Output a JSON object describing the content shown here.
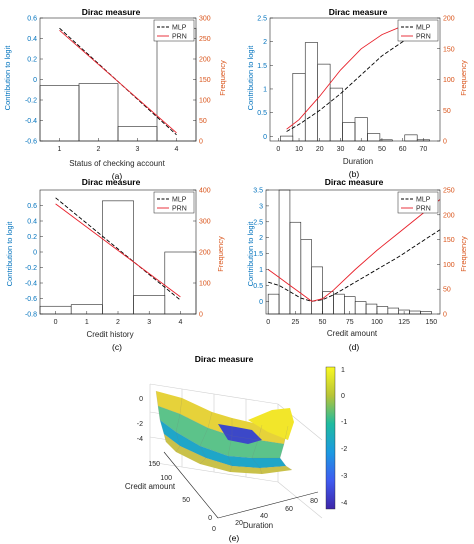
{
  "figure": {
    "colors": {
      "left_axis": "#0072BD",
      "right_axis": "#D95319",
      "mlp": "#000000",
      "prn": "#E8202A"
    },
    "panel_labels": [
      "(a)",
      "(b)",
      "(c)",
      "(d)",
      "(e)"
    ]
  },
  "chart_data": [
    {
      "type": "bar",
      "title": "Dirac measure",
      "xlabel": "Status of checking account",
      "ylabel": "Contribution to logit",
      "y2label": "Frequency",
      "xticks": [
        "1",
        "2",
        "3",
        "4"
      ],
      "xlim": [
        0.5,
        4.5
      ],
      "ylim": [
        -0.6,
        0.6
      ],
      "yticks": [
        "-0.6",
        "-0.4",
        "-0.2",
        "0",
        "0.2",
        "0.4",
        "0.6"
      ],
      "y2lim": [
        0,
        300
      ],
      "y2ticks": [
        "0",
        "50",
        "100",
        "150",
        "200",
        "250",
        "300"
      ],
      "bars": {
        "x": [
          1,
          2,
          3,
          4
        ],
        "frequency": [
          135,
          140,
          35,
          275
        ]
      },
      "legend": [
        "MLP",
        "PRN"
      ],
      "legend_position": "top-right",
      "series": [
        {
          "name": "MLP",
          "style": "dashed",
          "x": [
            1,
            4
          ],
          "y": [
            0.5,
            -0.54
          ]
        },
        {
          "name": "PRN",
          "style": "solid",
          "x": [
            1,
            4
          ],
          "y": [
            0.48,
            -0.52
          ]
        }
      ]
    },
    {
      "type": "bar",
      "title": "Dirac measure",
      "xlabel": "Duration",
      "ylabel": "Contribution to logit",
      "y2label": "Frequency",
      "xticks": [
        "0",
        "10",
        "20",
        "30",
        "40",
        "50",
        "60",
        "70"
      ],
      "xlim": [
        -4,
        78
      ],
      "ylim": [
        -0.1,
        2.5
      ],
      "yticks": [
        "0",
        "0.5",
        "1",
        "1.5",
        "2",
        "2.5"
      ],
      "y2lim": [
        0,
        200
      ],
      "y2ticks": [
        "0",
        "50",
        "100",
        "150",
        "200"
      ],
      "bars": {
        "x": [
          4,
          10,
          16,
          22,
          28,
          34,
          40,
          46,
          52,
          58,
          64,
          70
        ],
        "width": 6,
        "frequency": [
          8,
          110,
          160,
          125,
          86,
          30,
          38,
          12,
          2,
          0,
          10,
          2
        ]
      },
      "legend": [
        "MLP",
        "PRN"
      ],
      "legend_position": "top-right",
      "series": [
        {
          "name": "MLP",
          "style": "dashed",
          "x": [
            4,
            10,
            20,
            30,
            40,
            50,
            60,
            72
          ],
          "y": [
            0.1,
            0.25,
            0.55,
            0.9,
            1.3,
            1.7,
            2.0,
            2.3
          ]
        },
        {
          "name": "PRN",
          "style": "solid",
          "x": [
            4,
            10,
            20,
            30,
            40,
            50,
            60,
            72
          ],
          "y": [
            0.15,
            0.35,
            0.85,
            1.4,
            1.85,
            2.15,
            2.33,
            2.37
          ]
        }
      ]
    },
    {
      "type": "bar",
      "title": "Dirac measure",
      "xlabel": "Credit history",
      "ylabel": "Contribution to logit",
      "y2label": "Frequency",
      "xticks": [
        "0",
        "1",
        "2",
        "3",
        "4"
      ],
      "xlim": [
        -0.5,
        4.5
      ],
      "ylim": [
        -0.8,
        0.8
      ],
      "yticks": [
        "-0.8",
        "-0.6",
        "-0.4",
        "-0.2",
        "0",
        "0.2",
        "0.4",
        "0.6"
      ],
      "y2lim": [
        0,
        400
      ],
      "y2ticks": [
        "0",
        "100",
        "200",
        "300",
        "400"
      ],
      "bars": {
        "x": [
          0,
          1,
          2,
          3,
          4
        ],
        "frequency": [
          25,
          30,
          365,
          60,
          200
        ]
      },
      "legend": [
        "MLP",
        "PRN"
      ],
      "legend_position": "top-right",
      "series": [
        {
          "name": "MLP",
          "style": "dashed",
          "x": [
            0,
            4
          ],
          "y": [
            0.7,
            -0.62
          ]
        },
        {
          "name": "PRN",
          "style": "solid",
          "x": [
            0,
            4
          ],
          "y": [
            0.62,
            -0.58
          ]
        }
      ]
    },
    {
      "type": "bar",
      "title": "Dirac measure",
      "xlabel": "Credit amount",
      "ylabel": "Contribution to logit",
      "y2label": "Frequency",
      "xticks": [
        "0",
        "25",
        "50",
        "75",
        "100",
        "125",
        "150"
      ],
      "xlim": [
        -2,
        158
      ],
      "ylim": [
        -0.4,
        3.5
      ],
      "yticks": [
        "0",
        "0.5",
        "1",
        "1.5",
        "2",
        "2.5",
        "3",
        "3.5"
      ],
      "y2lim": [
        0,
        250
      ],
      "y2ticks": [
        "0",
        "50",
        "100",
        "150",
        "200",
        "250"
      ],
      "bars": {
        "x": [
          5,
          15,
          25,
          35,
          45,
          55,
          65,
          75,
          85,
          95,
          105,
          115,
          125,
          135,
          145
        ],
        "width": 10,
        "frequency": [
          40,
          250,
          185,
          150,
          95,
          45,
          40,
          35,
          25,
          20,
          15,
          12,
          8,
          6,
          5
        ]
      },
      "legend": [
        "MLP",
        "PRN"
      ],
      "legend_position": "top-right",
      "series": [
        {
          "name": "MLP",
          "style": "dashed",
          "x": [
            0,
            10,
            20,
            30,
            40,
            50,
            60,
            80,
            100,
            120,
            140,
            158
          ],
          "y": [
            0.6,
            0.5,
            0.3,
            0.1,
            0.0,
            0.05,
            0.2,
            0.6,
            1.0,
            1.4,
            1.85,
            2.25
          ]
        },
        {
          "name": "PRN",
          "style": "solid",
          "x": [
            0,
            10,
            20,
            30,
            40,
            50,
            60,
            80,
            100,
            120,
            140,
            158
          ],
          "y": [
            1.0,
            0.75,
            0.5,
            0.25,
            0.0,
            0.08,
            0.35,
            1.0,
            1.6,
            2.15,
            2.7,
            3.2
          ]
        }
      ]
    },
    {
      "type": "surface",
      "title": "Dirac measure",
      "xlabel": "Duration",
      "ylabel": "Credit amount",
      "xticks": [
        "0",
        "20",
        "40",
        "60",
        "80"
      ],
      "yticks": [
        "0",
        "50",
        "100",
        "150"
      ],
      "zticks": [
        "0",
        "-2",
        "-4"
      ],
      "colorbar_ticks": [
        "1",
        "0",
        "-1",
        "-2",
        "-3",
        "-4"
      ],
      "zlim": [
        -4.3,
        1.1
      ],
      "colormap": "parula"
    }
  ]
}
